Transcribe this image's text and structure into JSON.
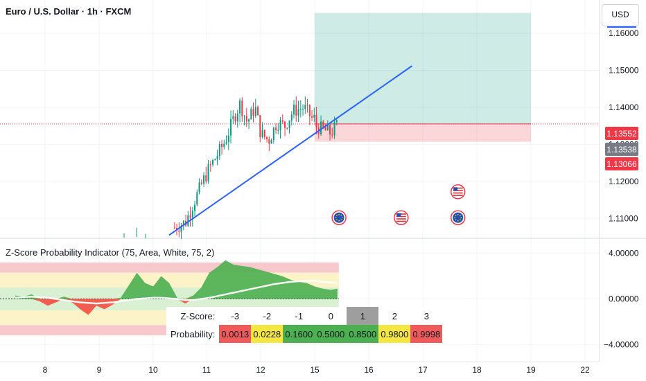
{
  "header": {
    "title": "Euro / U.S. Dollar · 1h · FXCM"
  },
  "currency_button": {
    "label": "USD"
  },
  "price_tags": [
    {
      "value": "1.13552",
      "color": "#f23645"
    },
    {
      "value": "1.13538",
      "color": "#787b86"
    },
    {
      "value": "1.13066",
      "color": "#f23645"
    }
  ],
  "indicator": {
    "title": "Z-Score Probability Indicator (75, Area, White, 75, 2)",
    "table": {
      "zscore_label": "Z-Score:",
      "probability_label": "Probability:",
      "cols": [
        {
          "z": "-3",
          "p": "0.0013",
          "color": "#f05a5a",
          "highlight": false
        },
        {
          "z": "-2",
          "p": "0.0228",
          "color": "#f5e642",
          "highlight": false
        },
        {
          "z": "-1",
          "p": "0.1600",
          "color": "#4caf50",
          "highlight": false
        },
        {
          "z": "0",
          "p": "0.5000",
          "color": "#4caf50",
          "highlight": false
        },
        {
          "z": "1",
          "p": "0.8500",
          "color": "#4caf50",
          "highlight": true
        },
        {
          "z": "2",
          "p": "0.9800",
          "color": "#f5e642",
          "highlight": false
        },
        {
          "z": "3",
          "p": "0.9998",
          "color": "#f05a5a",
          "highlight": false
        }
      ]
    }
  },
  "chart_data": [
    {
      "type": "candlestick",
      "title": "Euro / U.S. Dollar · 1h · FXCM",
      "ylim": [
        1.105,
        1.169
      ],
      "y_ticks": [
        "1.11000",
        "1.12000",
        "1.13000",
        "1.14000",
        "1.15000",
        "1.16000"
      ],
      "x_ticks": [
        "8",
        "9",
        "10",
        "11",
        "12",
        "15",
        "16",
        "17",
        "18",
        "19",
        "22"
      ],
      "last_price": 1.13552,
      "position": {
        "entry": 1.1355,
        "stop": 1.1307,
        "target": 1.1655,
        "start_day": 15.0,
        "end_day": 19.0
      },
      "trendline": {
        "x": [
          10.3,
          16.8
        ],
        "y": [
          1.1055,
          1.1512
        ],
        "color": "#2962ff"
      },
      "events": [
        {
          "day": 15.45,
          "price": 1.1102,
          "flag": "EU"
        },
        {
          "day": 16.6,
          "price": 1.1102,
          "flag": "US"
        },
        {
          "day": 17.65,
          "price": 1.1102,
          "flag": "EU"
        },
        {
          "day": 17.65,
          "price": 1.1172,
          "flag": "US"
        }
      ],
      "candles_summary": "Hourly EURUSD candles from about 1.103 on day 10 rallying to about 1.147 on day 11.6, consolidating between 1.128 and 1.142 and ending near 1.1355 on day 15.4"
    },
    {
      "type": "area",
      "title": "Z-Score Probability Indicator (75, Area, White, 75, 2)",
      "ylim": [
        -5.5,
        5.2
      ],
      "y_ticks": [
        "4.00000",
        "0.00000",
        "-4.00000"
      ],
      "bands": [
        {
          "from": 2.3,
          "to": 3.2,
          "color": "#f8c9cc"
        },
        {
          "from": 1.0,
          "to": 2.3,
          "color": "#fcf3c8"
        },
        {
          "from": -1.0,
          "to": 1.0,
          "color": "#d9f0d3"
        },
        {
          "from": -2.3,
          "to": -1.0,
          "color": "#fcf3c8"
        },
        {
          "from": -3.2,
          "to": -2.3,
          "color": "#f8c9cc"
        }
      ],
      "x": [
        7.45,
        7.6,
        7.75,
        7.9,
        8.05,
        8.2,
        8.35,
        8.5,
        8.65,
        8.8,
        8.95,
        9.1,
        9.25,
        9.4,
        9.55,
        9.7,
        9.85,
        10.0,
        10.15,
        10.3,
        10.45,
        10.6,
        10.75,
        10.9,
        11.05,
        11.2,
        11.35,
        11.5,
        11.65,
        11.8,
        11.95,
        12.1,
        12.25,
        12.4,
        12.55,
        12.7,
        12.85,
        15.0,
        15.15,
        15.3,
        15.42
      ],
      "z": [
        0.3,
        0.2,
        0.4,
        -0.2,
        -0.6,
        -0.3,
        0.2,
        -0.3,
        -0.9,
        -1.4,
        -0.6,
        -0.9,
        -0.5,
        0.1,
        1.2,
        2.3,
        1.4,
        1.1,
        2.0,
        1.4,
        0.1,
        -0.4,
        0.3,
        1.0,
        2.3,
        2.8,
        3.4,
        3.0,
        2.9,
        2.8,
        2.6,
        2.4,
        2.2,
        2.0,
        1.7,
        1.5,
        1.4,
        1.1,
        0.9,
        0.8,
        0.9
      ],
      "baseline": [
        0.1,
        0.15,
        0.2,
        0.15,
        0.1,
        0.0,
        -0.1,
        -0.2,
        -0.3,
        -0.35,
        -0.4,
        -0.35,
        -0.3,
        -0.2,
        -0.1,
        0.0,
        0.05,
        0.1,
        0.1,
        0.05,
        0.0,
        -0.1,
        -0.1,
        0.0,
        0.1,
        0.25,
        0.4,
        0.55,
        0.7,
        0.85,
        1.0,
        1.15,
        1.3,
        1.4,
        1.5,
        1.55,
        1.6,
        1.6,
        1.5,
        1.45,
        1.4
      ]
    }
  ]
}
